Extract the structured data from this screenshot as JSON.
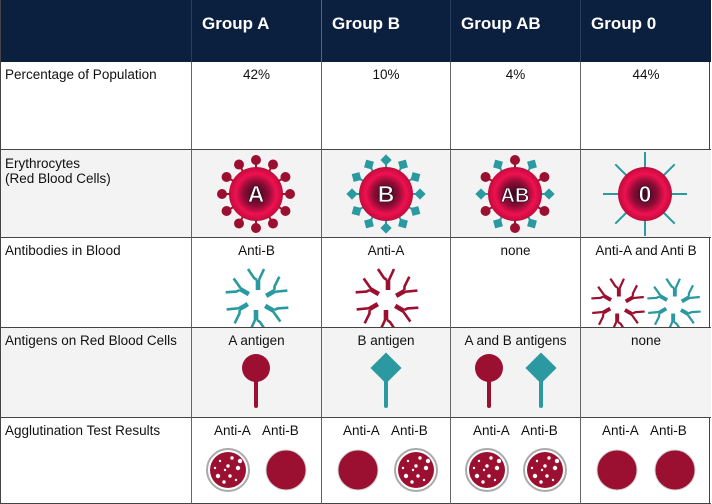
{
  "headers": [
    "",
    "Group A",
    "Group B",
    "Group AB",
    "Group 0"
  ],
  "rows": {
    "population": {
      "label": "Percentage of Population",
      "values": [
        "42%",
        "10%",
        "4%",
        "44%"
      ]
    },
    "erythrocytes": {
      "label": "Erythrocytes\n(Red Blood Cells)",
      "letters": [
        "A",
        "B",
        "AB",
        "0"
      ]
    },
    "antibodies": {
      "label": "Antibodies in Blood",
      "values": [
        "Anti-B",
        "Anti-A",
        "none",
        "Anti-A and Anti B"
      ]
    },
    "antigens": {
      "label": "Antigens on Red Blood Cells",
      "values": [
        "A antigen",
        "B antigen",
        "A and B antigens",
        "none"
      ]
    },
    "agglutination": {
      "label": "Agglutination Test Results",
      "anti_a": "Anti-A",
      "anti_b": "Anti-B",
      "results": [
        [
          true,
          false
        ],
        [
          false,
          true
        ],
        [
          true,
          true
        ],
        [
          false,
          false
        ]
      ]
    }
  },
  "colors": {
    "header": "#0b1f3f",
    "crimson": "#9b1030",
    "teal": "#2a9aa0",
    "row_alt": "#f3f3f3"
  }
}
